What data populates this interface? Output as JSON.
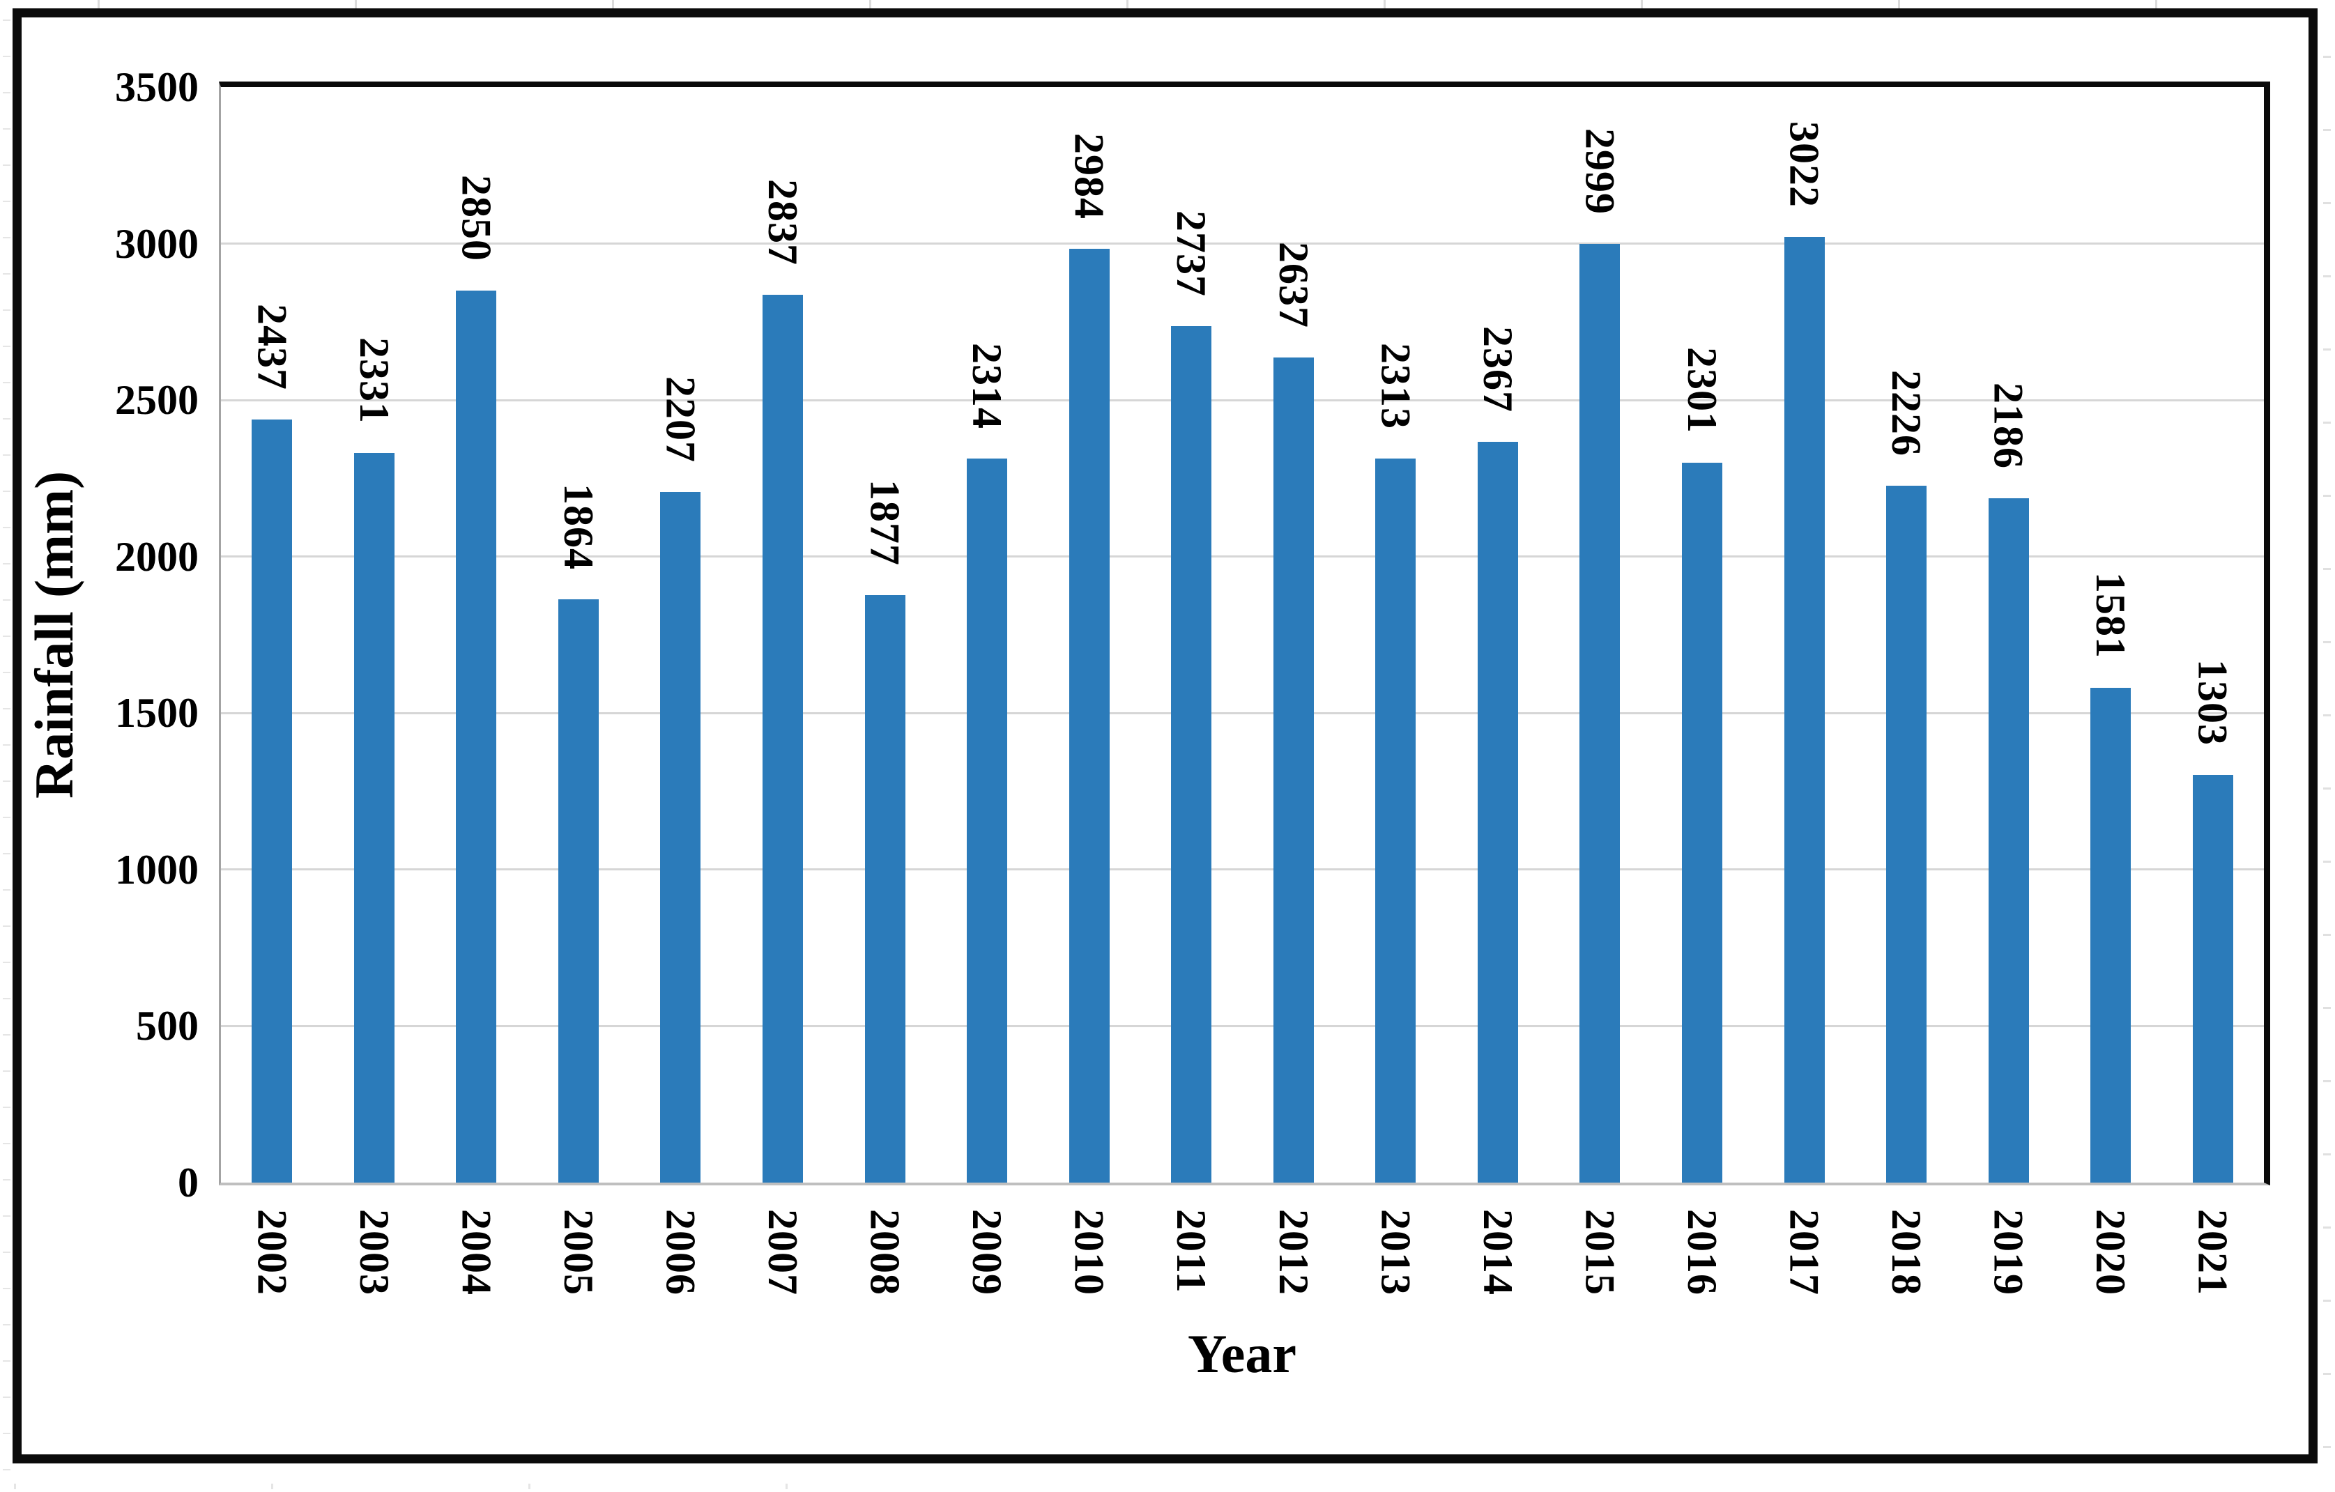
{
  "figure": {
    "y_axis_title": "Rainfall (mm)",
    "x_axis_title": "Year"
  },
  "chart_data": {
    "type": "bar",
    "title": "",
    "xlabel": "Year",
    "ylabel": "Rainfall (mm)",
    "categories": [
      "2002",
      "2003",
      "2004",
      "2005",
      "2006",
      "2007",
      "2008",
      "2009",
      "2010",
      "2011",
      "2012",
      "2013",
      "2014",
      "2015",
      "2016",
      "2017",
      "2018",
      "2019",
      "2020",
      "2021"
    ],
    "values": [
      2437,
      2331,
      2850,
      1864,
      2207,
      2837,
      1877,
      2314,
      2984,
      2737,
      2637,
      2313,
      2367,
      2999,
      2301,
      3022,
      2226,
      2186,
      1581,
      1303
    ],
    "value_labels_shown": true,
    "value_label_rotation_deg": 90,
    "ylim": [
      0,
      3500
    ],
    "yticks": [
      0,
      500,
      1000,
      1500,
      2000,
      2500,
      3000,
      3500
    ],
    "grid": true,
    "legend_position": "none",
    "bar_color": "#2b7bba",
    "gridline_color": "#d6d6d6"
  }
}
